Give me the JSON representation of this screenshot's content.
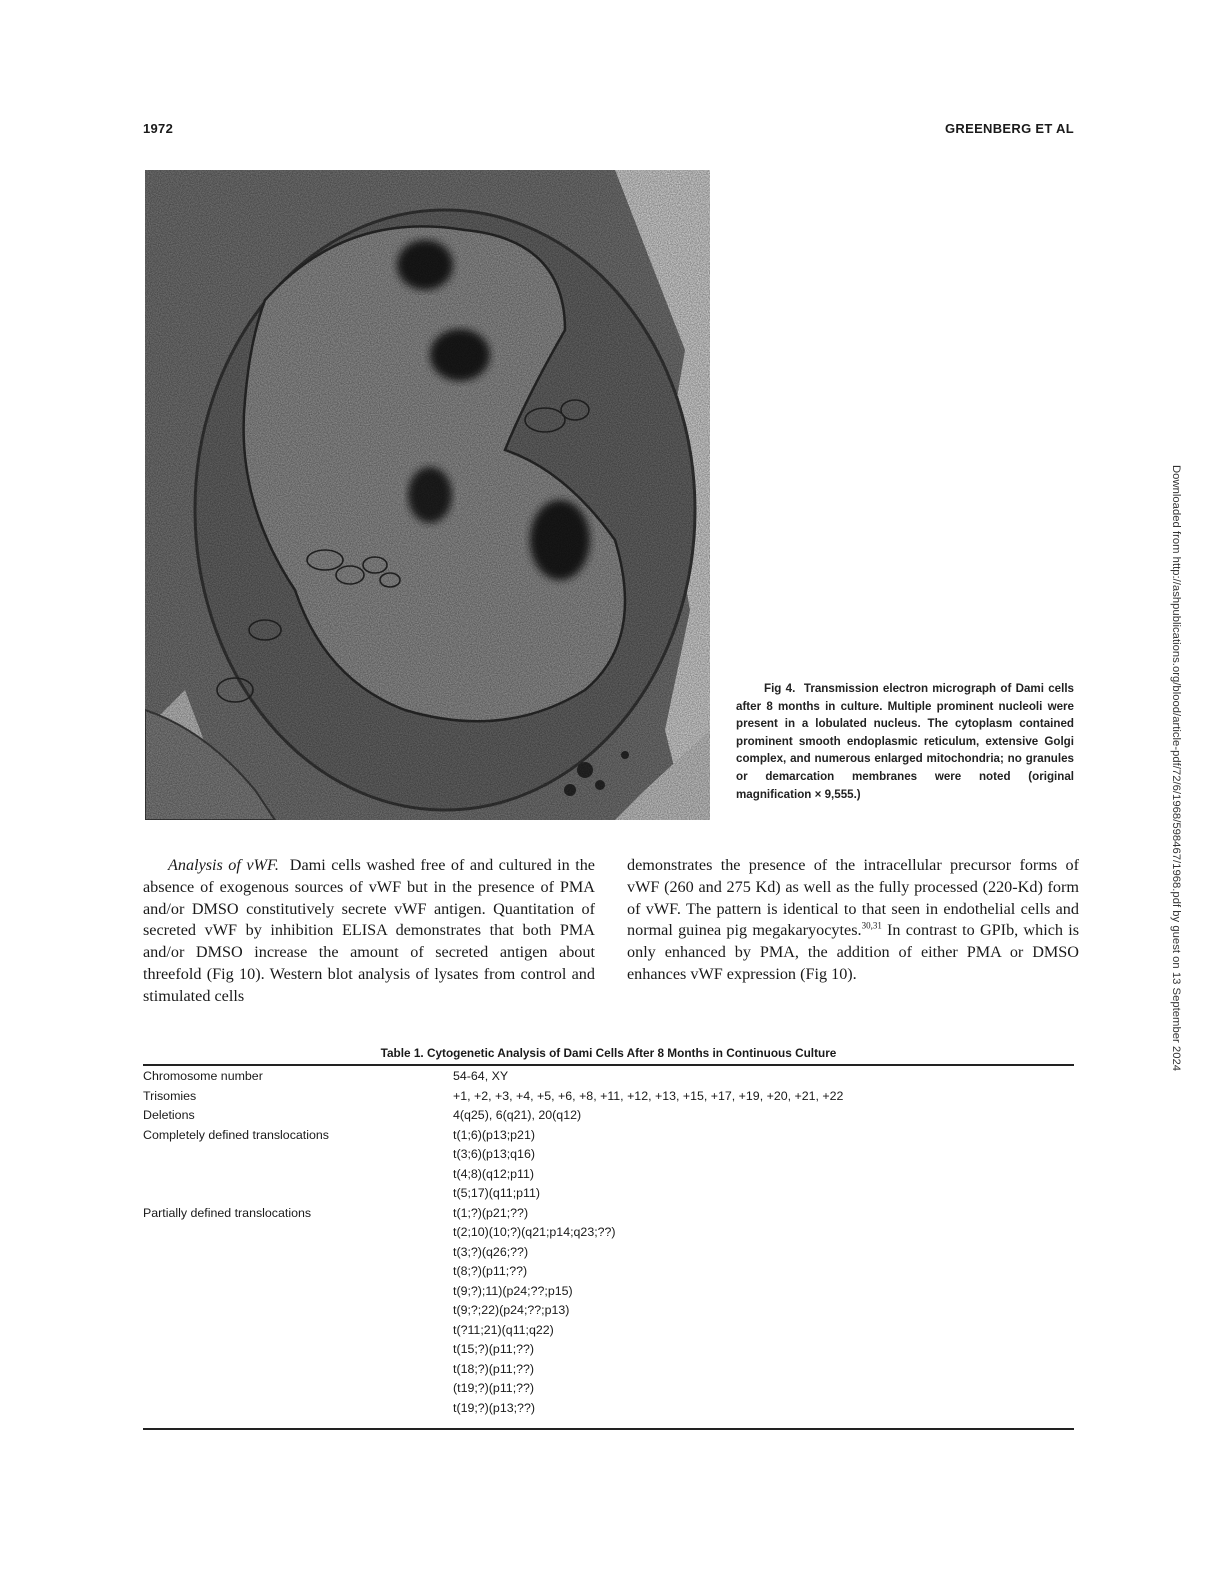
{
  "header": {
    "page_number": "1972",
    "running_head": "GREENBERG ET AL"
  },
  "figure": {
    "caption_label": "Fig 4.",
    "caption_text": "Transmission electron micrograph of Dami cells after 8 months in culture. Multiple prominent nucleoli were present in a lobulated nucleus. The cytoplasm contained prominent smooth endoplasmic reticulum, extensive Golgi complex, and numerous enlarged mitochondria; no granules or demarcation membranes were noted (original magnification × 9,555.)"
  },
  "body": {
    "left_heading": "Analysis of vWF.",
    "left_text": "Dami cells washed free of and cultured in the absence of exogenous sources of vWF but in the presence of PMA and/or DMSO constitutively secrete vWF antigen. Quantitation of secreted vWF by inhibition ELISA demonstrates that both PMA and/or DMSO increase the amount of secreted antigen about threefold (Fig 10). Western blot analysis of lysates from control and stimulated cells",
    "right_text_1": "demonstrates the presence of the intracellular precursor forms of vWF (260 and 275 Kd) as well as the fully processed (220-Kd) form of vWF. The pattern is identical to that seen in endothelial cells and normal guinea pig megakaryocytes.",
    "right_refs": "30,31",
    "right_text_2": " In contrast to GPIb, which is only enhanced by PMA, the addition of either PMA or DMSO enhances vWF expression (Fig 10)."
  },
  "table": {
    "title": "Table 1.  Cytogenetic Analysis of Dami Cells After 8 Months in Continuous Culture",
    "rows": [
      {
        "label": "Chromosome number",
        "value": "54-64, XY"
      },
      {
        "label": "Trisomies",
        "value": "+1, +2, +3, +4, +5, +6, +8, +11, +12, +13, +15, +17, +19, +20, +21, +22"
      },
      {
        "label": "Deletions",
        "value": "4(q25), 6(q21), 20(q12)"
      },
      {
        "label": "Completely defined translocations",
        "value": "t(1;6)(p13;p21)"
      },
      {
        "label": "",
        "value": "t(3;6)(p13;q16)"
      },
      {
        "label": "",
        "value": "t(4;8)(q12;p11)"
      },
      {
        "label": "",
        "value": "t(5;17)(q11;p11)"
      },
      {
        "label": "Partially defined translocations",
        "value": "t(1;?)(p21;??)"
      },
      {
        "label": "",
        "value": "t(2;10)(10;?)(q21;p14;q23;??)"
      },
      {
        "label": "",
        "value": "t(3;?)(q26;??)"
      },
      {
        "label": "",
        "value": "t(8;?)(p11;??)"
      },
      {
        "label": "",
        "value": "t(9;?);11)(p24;??;p15)"
      },
      {
        "label": "",
        "value": "t(9;?;22)(p24;??;p13)"
      },
      {
        "label": "",
        "value": "t(?11;21)(q11;q22)"
      },
      {
        "label": "",
        "value": "t(15;?)(p11;??)"
      },
      {
        "label": "",
        "value": "t(18;?)(p11;??)"
      },
      {
        "label": "",
        "value": "(t19;?)(p11;??)"
      },
      {
        "label": "",
        "value": "t(19;?)(p13;??)"
      }
    ]
  },
  "side_note": "Downloaded from http://ashpublications.org/blood/article-pdf/72/6/1968/598467/1968.pdf by guest on 13 September 2024"
}
